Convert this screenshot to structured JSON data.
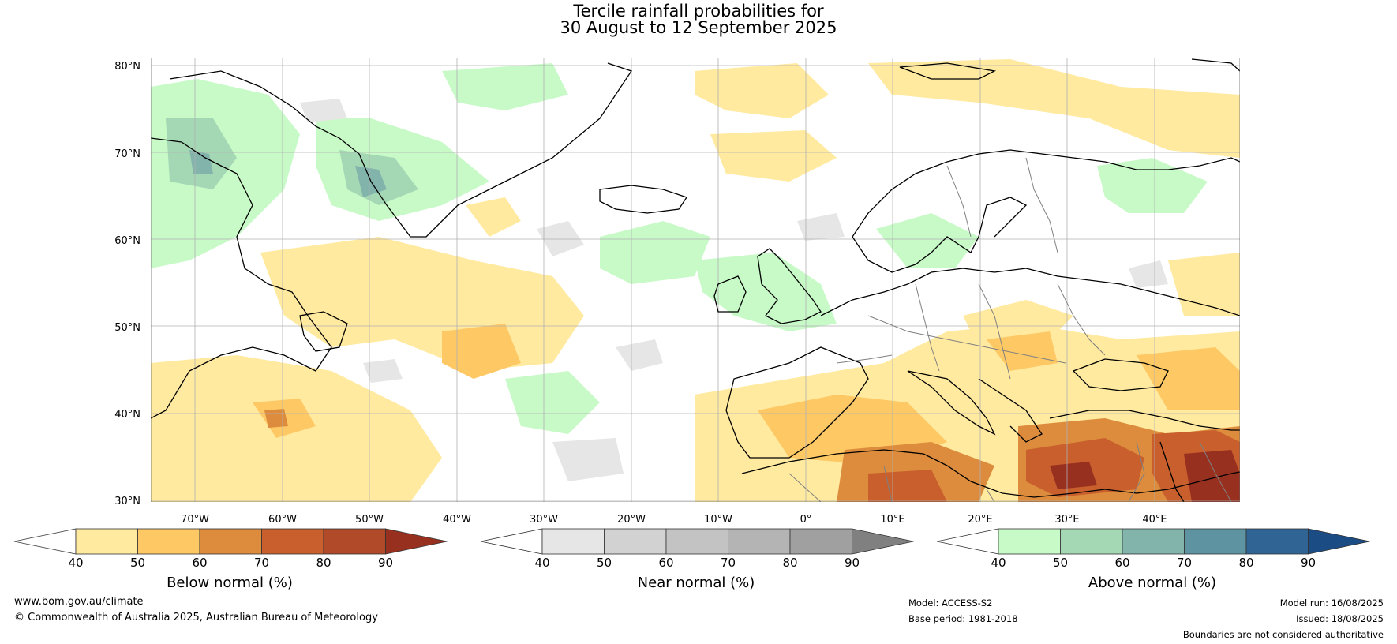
{
  "title": {
    "line1": "Tercile rainfall probabilities for",
    "line2": "30 August to 12 September 2025"
  },
  "lat_labels": [
    "80°N",
    "70°N",
    "60°N",
    "50°N",
    "40°N",
    "30°N"
  ],
  "lon_labels": [
    "70°W",
    "60°W",
    "50°W",
    "40°W",
    "30°W",
    "20°W",
    "10°W",
    "0°",
    "10°E",
    "20°E",
    "30°E",
    "40°E"
  ],
  "colorbars": [
    {
      "id": "below",
      "title": "Below normal (%)",
      "ticks": [
        "40",
        "50",
        "60",
        "70",
        "80",
        "90"
      ],
      "colors": [
        "#ffffff",
        "#ffeaa0",
        "#fec965",
        "#dc8c3c",
        "#c85f2d",
        "#b04a28",
        "#983020"
      ]
    },
    {
      "id": "near",
      "title": "Near normal (%)",
      "ticks": [
        "40",
        "50",
        "60",
        "70",
        "80",
        "90"
      ],
      "colors": [
        "#ffffff",
        "#e6e6e6",
        "#d2d2d2",
        "#c3c3c3",
        "#b4b4b4",
        "#a0a0a0",
        "#808080"
      ]
    },
    {
      "id": "above",
      "title": "Above normal (%)",
      "ticks": [
        "40",
        "50",
        "60",
        "70",
        "80",
        "90"
      ],
      "colors": [
        "#ffffff",
        "#c8fac8",
        "#a4d8b4",
        "#82b4ac",
        "#5e94a2",
        "#306494",
        "#1c4c84"
      ]
    }
  ],
  "footer": {
    "website": "www.bom.gov.au/climate",
    "copyright": "© Commonwealth of Australia 2025, Australian Bureau of Meteorology",
    "model": "Model: ACCESS-S2",
    "base_period": "Base period: 1981-2018",
    "model_run": "Model run: 16/08/2025",
    "issued": "Issued: 18/08/2025",
    "disclaimer": "Boundaries are not considered authoritative"
  },
  "map_colors": {
    "below_50": "#ffeaa0",
    "below_60": "#fec965",
    "below_70": "#dc8c3c",
    "below_80": "#c85f2d",
    "below_90": "#983020",
    "near_50": "#e6e6e6",
    "above_50": "#c8fac8",
    "above_60": "#a4d8b4",
    "above_70": "#82b4ac",
    "coast": "#000000",
    "border": "#808080",
    "grid": "#b0b0b0"
  }
}
